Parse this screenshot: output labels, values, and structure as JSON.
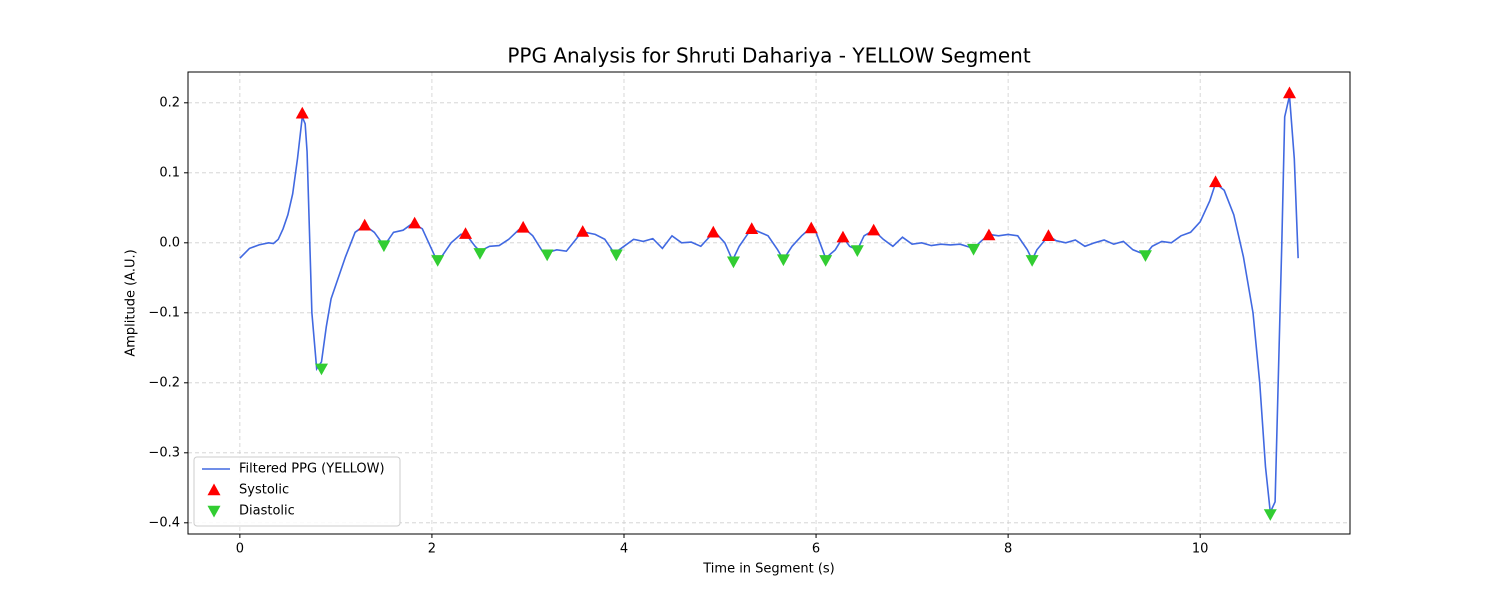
{
  "chart_data": {
    "type": "line",
    "title": "PPG Analysis for Shruti Dahariya - YELLOW Segment",
    "x_label": "Time in Segment (s)",
    "y_label": "Amplitude (A.U.)",
    "xlim": [
      -0.54,
      11.56
    ],
    "ylim": [
      -0.416,
      0.244
    ],
    "xticks": [
      0,
      2,
      4,
      6,
      8,
      10
    ],
    "yticks": [
      {
        "value": -0.4,
        "label": "−0.4"
      },
      {
        "value": -0.3,
        "label": "−0.3"
      },
      {
        "value": -0.2,
        "label": "−0.2"
      },
      {
        "value": -0.1,
        "label": "−0.1"
      },
      {
        "value": 0,
        "label": "0.0"
      },
      0.1,
      0.2
    ],
    "grid": true,
    "legend_position": "lower-left",
    "series": [
      {
        "name": "Filtered PPG (YELLOW)",
        "type": "line",
        "color": "#4169e1",
        "x": [
          0,
          0.1,
          0.2,
          0.3,
          0.35,
          0.4,
          0.45,
          0.5,
          0.55,
          0.6,
          0.65,
          0.68,
          0.7,
          0.75,
          0.8,
          0.85,
          0.9,
          0.95,
          1.0,
          1.1,
          1.2,
          1.3,
          1.4,
          1.5,
          1.55,
          1.6,
          1.7,
          1.8,
          1.9,
          2.0,
          2.05,
          2.1,
          2.2,
          2.3,
          2.35,
          2.45,
          2.5,
          2.6,
          2.7,
          2.8,
          2.9,
          2.95,
          3.05,
          3.15,
          3.2,
          3.3,
          3.4,
          3.5,
          3.56,
          3.7,
          3.8,
          3.9,
          4.0,
          4.1,
          4.2,
          4.3,
          4.4,
          4.5,
          4.6,
          4.7,
          4.8,
          4.9,
          4.95,
          5.05,
          5.13,
          5.2,
          5.3,
          5.33,
          5.4,
          5.5,
          5.6,
          5.66,
          5.75,
          5.85,
          5.95,
          6.0,
          6.1,
          6.2,
          6.28,
          6.35,
          6.43,
          6.5,
          6.6,
          6.7,
          6.8,
          6.9,
          7.0,
          7.1,
          7.2,
          7.3,
          7.4,
          7.5,
          7.64,
          7.7,
          7.8,
          7.9,
          8.0,
          8.1,
          8.2,
          8.25,
          8.3,
          8.42,
          8.5,
          8.6,
          8.7,
          8.8,
          8.9,
          9.0,
          9.1,
          9.2,
          9.3,
          9.43,
          9.5,
          9.6,
          9.7,
          9.8,
          9.9,
          10.0,
          10.1,
          10.16,
          10.25,
          10.35,
          10.45,
          10.55,
          10.62,
          10.68,
          10.73,
          10.78,
          10.85,
          10.88,
          10.93,
          10.98,
          11.02
        ],
        "values": [
          -0.022,
          -0.008,
          -0.003,
          0.0,
          -0.001,
          0.005,
          0.02,
          0.04,
          0.07,
          0.12,
          0.18,
          0.17,
          0.13,
          -0.1,
          -0.18,
          -0.17,
          -0.12,
          -0.08,
          -0.06,
          -0.02,
          0.015,
          0.025,
          0.015,
          -0.004,
          0.005,
          0.015,
          0.018,
          0.028,
          0.02,
          -0.01,
          -0.025,
          -0.02,
          0.0,
          0.012,
          0.013,
          -0.005,
          -0.012,
          -0.005,
          -0.004,
          0.005,
          0.018,
          0.022,
          0.01,
          -0.012,
          -0.014,
          -0.01,
          -0.012,
          0.005,
          0.016,
          0.012,
          0.005,
          -0.015,
          -0.005,
          0.005,
          0.002,
          0.006,
          -0.008,
          0.01,
          0.0,
          0.001,
          -0.005,
          0.01,
          0.015,
          0.0,
          -0.025,
          -0.005,
          0.015,
          0.02,
          0.016,
          0.01,
          -0.01,
          -0.024,
          -0.005,
          0.01,
          0.022,
          0.015,
          -0.022,
          -0.01,
          0.008,
          -0.005,
          -0.01,
          0.01,
          0.018,
          0.005,
          -0.005,
          0.008,
          -0.002,
          0.0,
          -0.004,
          -0.002,
          -0.003,
          -0.002,
          -0.008,
          0.0,
          0.012,
          0.01,
          0.012,
          0.01,
          -0.01,
          -0.024,
          -0.01,
          0.01,
          0.003,
          0.0,
          0.004,
          -0.005,
          0.0,
          0.004,
          -0.002,
          0.002,
          -0.01,
          -0.017,
          -0.005,
          0.002,
          0.0,
          0.01,
          0.015,
          0.03,
          0.06,
          0.085,
          0.075,
          0.04,
          -0.02,
          -0.1,
          -0.2,
          -0.32,
          -0.385,
          -0.37,
          0.0,
          0.18,
          0.21,
          0.12,
          -0.022
        ]
      },
      {
        "name": "Systolic",
        "type": "scatter",
        "marker": "triangle-up",
        "color": "#ff0000",
        "x": [
          0.65,
          1.3,
          1.82,
          2.35,
          2.95,
          3.57,
          4.93,
          5.33,
          5.95,
          6.28,
          6.6,
          7.8,
          8.42,
          10.16,
          10.93
        ],
        "values": [
          0.185,
          0.025,
          0.028,
          0.013,
          0.022,
          0.016,
          0.015,
          0.02,
          0.021,
          0.008,
          0.018,
          0.011,
          0.01,
          0.087,
          0.214
        ]
      },
      {
        "name": "Diastolic",
        "type": "scatter",
        "marker": "triangle-down",
        "color": "#32cd32",
        "x": [
          0.85,
          1.5,
          2.06,
          2.5,
          3.2,
          3.92,
          5.14,
          5.66,
          6.1,
          6.43,
          7.64,
          8.25,
          9.43,
          10.73
        ],
        "values": [
          -0.18,
          -0.004,
          -0.025,
          -0.015,
          -0.017,
          -0.017,
          -0.027,
          -0.024,
          -0.025,
          -0.011,
          -0.009,
          -0.025,
          -0.018,
          -0.388
        ]
      }
    ]
  }
}
